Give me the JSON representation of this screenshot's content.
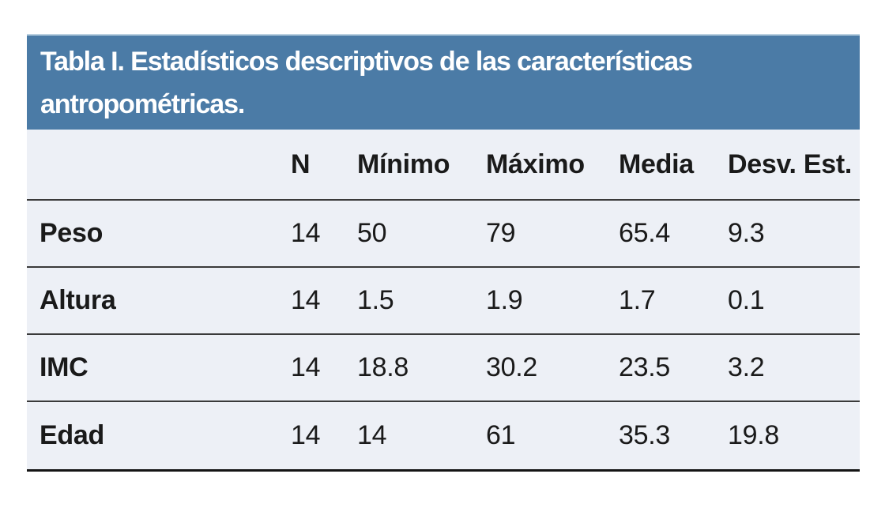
{
  "table": {
    "title_line1": "Tabla I. Estadísticos descriptivos de las características",
    "title_line2": "antropométricas.",
    "columns": {
      "label": "",
      "n": "N",
      "min": "Mínimo",
      "max": "Máximo",
      "mean": "Media",
      "sd": "Desv. Est."
    },
    "rows": [
      {
        "label": "Peso",
        "values": [
          "14",
          "50",
          "79",
          "65.4",
          "9.3"
        ]
      },
      {
        "label": "Altura",
        "values": [
          "14",
          "1.5",
          "1.9",
          "1.7",
          "0.1"
        ]
      },
      {
        "label": "IMC",
        "values": [
          "14",
          "18.8",
          "30.2",
          "23.5",
          "3.2"
        ]
      },
      {
        "label": "Edad",
        "values": [
          "14",
          "14",
          "61",
          "35.3",
          "19.8"
        ]
      }
    ],
    "colors": {
      "band_blue": "#4b7ba6",
      "band_top_edge": "#bad0e0",
      "row_background": "#edf0f6",
      "separator_line": "#3a3a3a",
      "bottom_line": "#141414",
      "title_text": "#ffffff",
      "body_text": "#1a1a1a"
    }
  }
}
